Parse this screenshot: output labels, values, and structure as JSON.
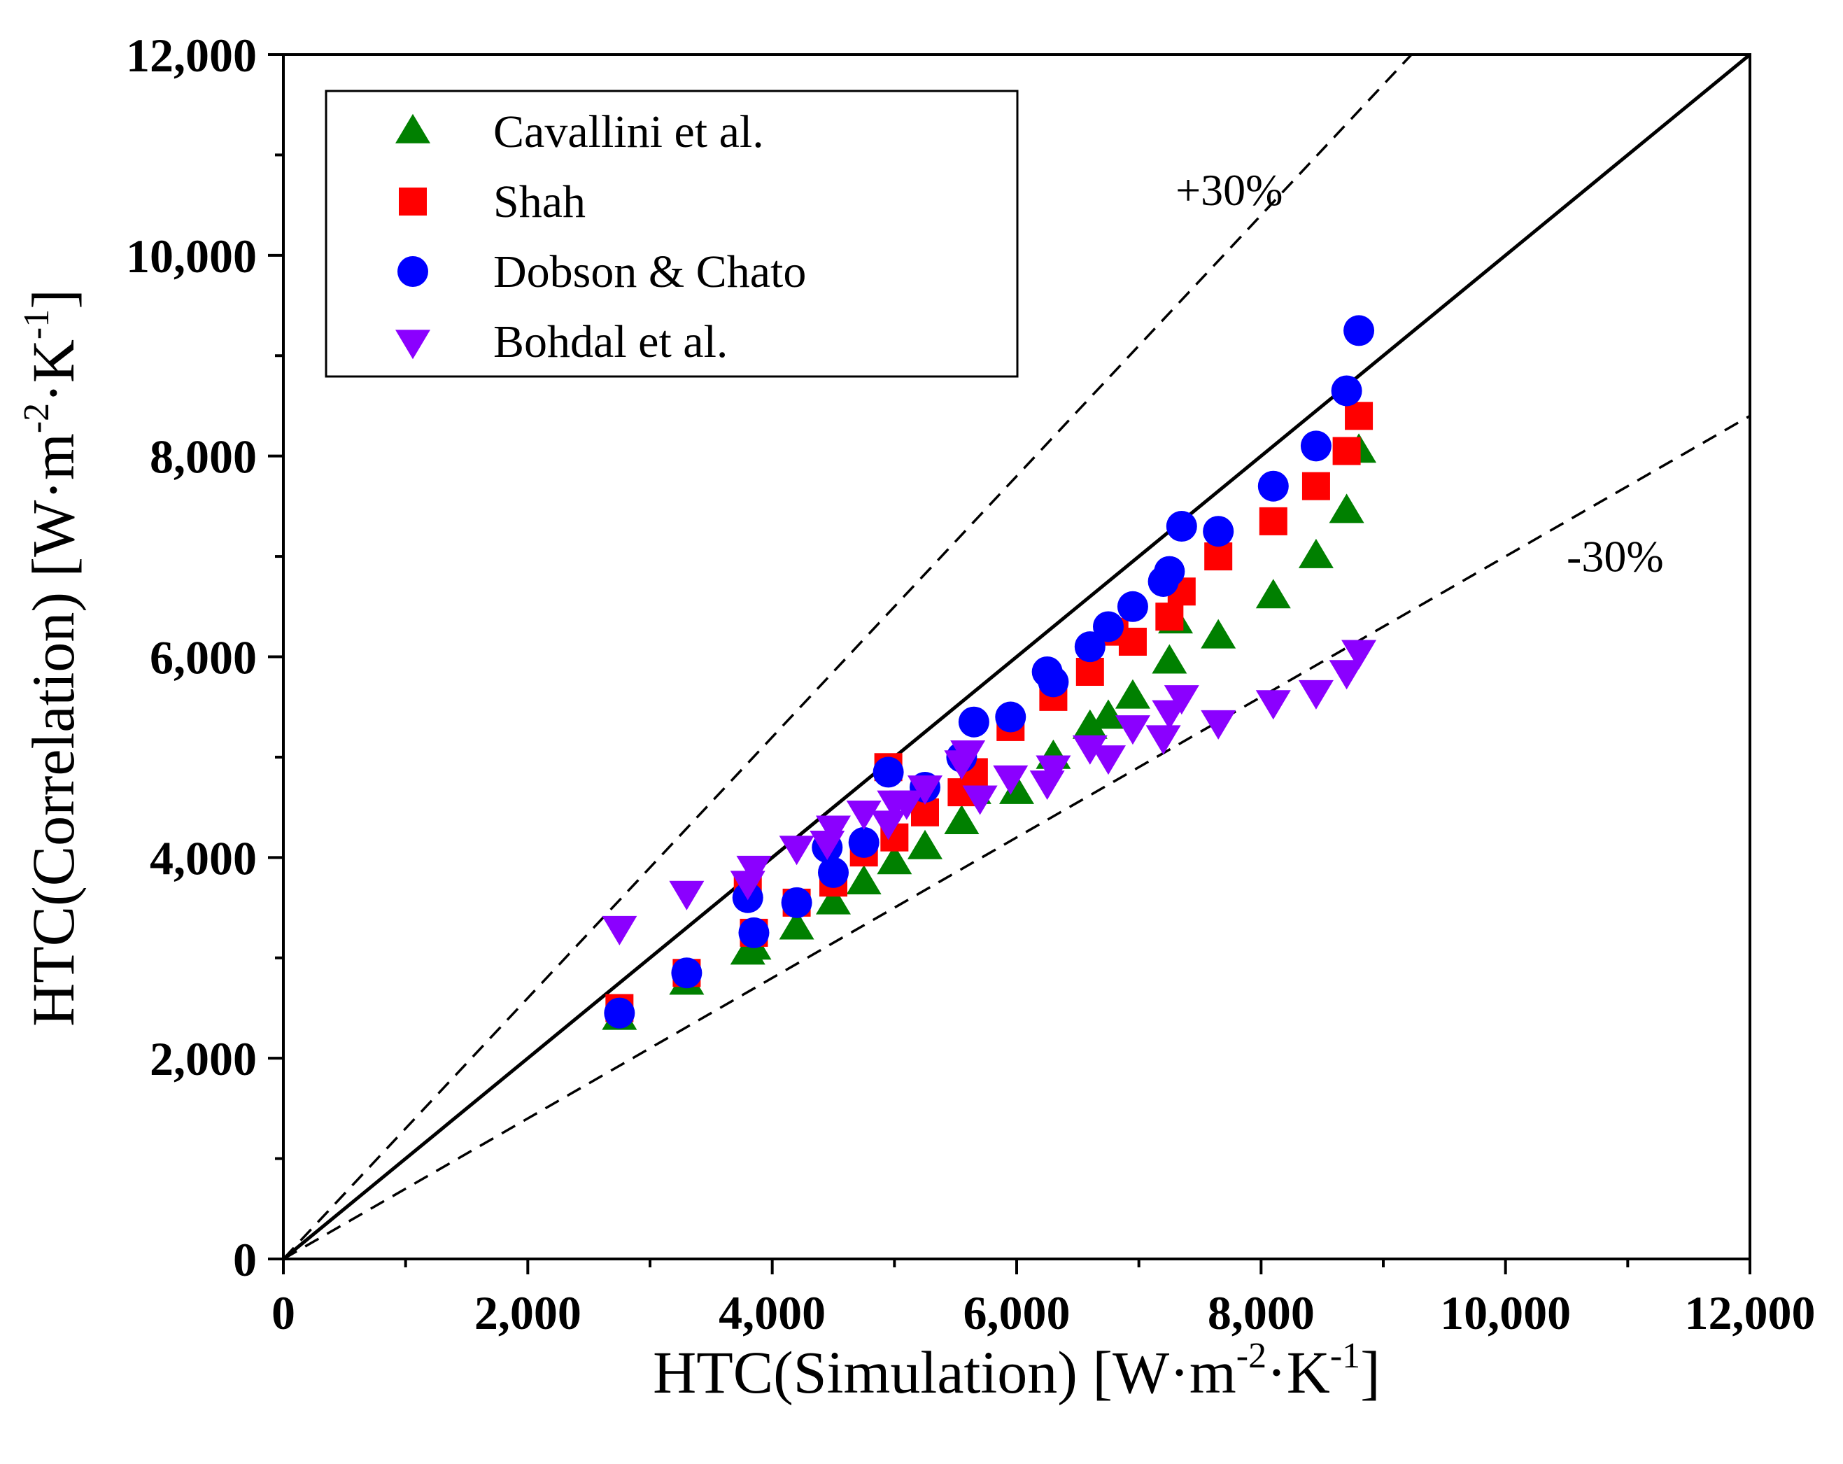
{
  "chart_data": {
    "type": "scatter",
    "title": "",
    "xlabel": {
      "main": "HTC(Simulation) [W·m",
      "exp1": "-2",
      "mid": "·K",
      "exp2": "-1",
      "end": "]"
    },
    "ylabel": {
      "main": "HTC(Correlation) [W·m",
      "exp1": "-2",
      "mid": "·K",
      "exp2": "-1",
      "end": "]"
    },
    "xlim": [
      0,
      12000
    ],
    "ylim": [
      0,
      12000
    ],
    "x_ticks": [
      0,
      2000,
      4000,
      6000,
      8000,
      10000,
      12000
    ],
    "y_ticks": [
      0,
      2000,
      4000,
      6000,
      8000,
      10000,
      12000
    ],
    "x_tick_labels": [
      "0",
      "2,000",
      "4,000",
      "6,000",
      "8,000",
      "10,000",
      "12,000"
    ],
    "y_tick_labels": [
      "0",
      "2,000",
      "4,000",
      "6,000",
      "8,000",
      "10,000",
      "12,000"
    ],
    "grid": false,
    "legend_position": "top-left",
    "reference_lines": [
      {
        "name": "parity",
        "slope": 1.0,
        "style": "solid"
      },
      {
        "name": "plus-30",
        "slope": 1.3,
        "style": "dashed",
        "label": "+30%"
      },
      {
        "name": "minus-30",
        "slope": 0.7,
        "style": "dashed",
        "label": "-30%"
      }
    ],
    "series": [
      {
        "name": "Cavallini et al.",
        "marker": "triangle-up",
        "color": "#008000",
        "x": [
          2750,
          3300,
          3800,
          3850,
          4200,
          4500,
          4750,
          5000,
          5250,
          5550,
          5650,
          6000,
          6300,
          6600,
          6750,
          6950,
          7250,
          7300,
          7650,
          8100,
          8450,
          8700,
          8800
        ],
        "y": [
          2400,
          2750,
          3050,
          3100,
          3300,
          3550,
          3750,
          3950,
          4100,
          4350,
          4650,
          4650,
          5000,
          5300,
          5400,
          5600,
          5950,
          6350,
          6200,
          6600,
          7000,
          7450,
          8050
        ]
      },
      {
        "name": "Shah",
        "marker": "square",
        "color": "#ff0000",
        "x": [
          2750,
          3300,
          3800,
          3850,
          4200,
          4500,
          4750,
          4950,
          5000,
          5250,
          5550,
          5650,
          5950,
          6300,
          6600,
          6800,
          6950,
          7250,
          7350,
          7650,
          8100,
          8450,
          8700,
          8800
        ],
        "y": [
          2500,
          2850,
          3700,
          3250,
          3550,
          3750,
          4050,
          4900,
          4200,
          4450,
          4650,
          4850,
          5300,
          5600,
          5850,
          6250,
          6150,
          6400,
          6650,
          7000,
          7350,
          7700,
          8050,
          8400
        ]
      },
      {
        "name": "Dobson & Chato",
        "marker": "circle",
        "color": "#0000ff",
        "x": [
          2750,
          3300,
          3800,
          3850,
          4200,
          4450,
          4500,
          4750,
          4950,
          5250,
          5550,
          5650,
          5950,
          6250,
          6300,
          6600,
          6750,
          6950,
          7200,
          7250,
          7350,
          7650,
          8100,
          8450,
          8700,
          8800
        ],
        "y": [
          2450,
          2850,
          3600,
          3250,
          3550,
          4100,
          3850,
          4150,
          4850,
          4700,
          5000,
          5350,
          5400,
          5850,
          5750,
          6100,
          6300,
          6500,
          6750,
          6850,
          7300,
          7250,
          7700,
          8100,
          8650,
          9250
        ]
      },
      {
        "name": "Bohdal et al.",
        "marker": "triangle-down",
        "color": "#8b00ff",
        "x": [
          2750,
          3300,
          3800,
          3850,
          4200,
          4450,
          4500,
          4750,
          4950,
          5000,
          5100,
          5250,
          5550,
          5600,
          5700,
          5950,
          6250,
          6300,
          6600,
          6750,
          6950,
          7200,
          7250,
          7350,
          7650,
          8100,
          8450,
          8700,
          8800
        ],
        "y": [
          3300,
          3650,
          3750,
          3900,
          4100,
          4150,
          4300,
          4450,
          4350,
          4550,
          4550,
          4700,
          4950,
          5050,
          4600,
          4800,
          4750,
          4900,
          5100,
          5000,
          5300,
          5200,
          5450,
          5600,
          5350,
          5550,
          5650,
          5850,
          6050
        ]
      }
    ],
    "annotations": [
      {
        "text": "+30%",
        "x": 7300,
        "y": 10500
      },
      {
        "text": "-30%",
        "x": 10500,
        "y": 6850
      }
    ]
  }
}
